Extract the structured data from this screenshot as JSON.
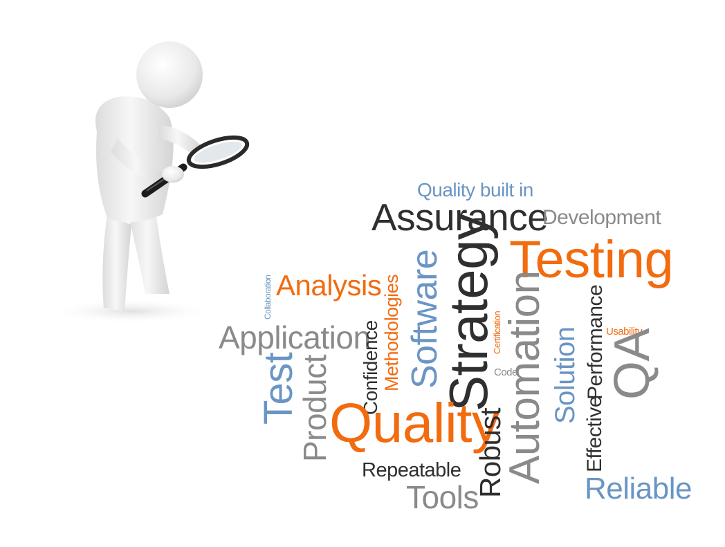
{
  "colors": {
    "orange": "#f26b0f",
    "blue": "#6a95c4",
    "dark": "#2f2f2f",
    "gray": "#8a8a8a"
  },
  "illustration": {
    "subject": "person-with-magnifying-glass-icon"
  },
  "word_cloud": {
    "words": [
      {
        "text": "Quality built in",
        "color": "blue"
      },
      {
        "text": "Assurance",
        "color": "dark"
      },
      {
        "text": "Development",
        "color": "gray"
      },
      {
        "text": "Testing",
        "color": "orange"
      },
      {
        "text": "Collaboration",
        "color": "blue"
      },
      {
        "text": "Analysis",
        "color": "orange"
      },
      {
        "text": "Methodologies",
        "color": "orange"
      },
      {
        "text": "Software",
        "color": "blue"
      },
      {
        "text": "Strategy",
        "color": "dark"
      },
      {
        "text": "Certification",
        "color": "orange"
      },
      {
        "text": "Automation",
        "color": "gray"
      },
      {
        "text": "Performance",
        "color": "dark"
      },
      {
        "text": "Usability",
        "color": "orange"
      },
      {
        "text": "Application",
        "color": "gray"
      },
      {
        "text": "Confidence",
        "color": "dark"
      },
      {
        "text": "Code",
        "color": "gray"
      },
      {
        "text": "Solution",
        "color": "blue"
      },
      {
        "text": "QA",
        "color": "gray"
      },
      {
        "text": "Test",
        "color": "blue"
      },
      {
        "text": "Product",
        "color": "gray"
      },
      {
        "text": "Quality",
        "color": "orange"
      },
      {
        "text": "Effective",
        "color": "dark"
      },
      {
        "text": "Robust",
        "color": "dark"
      },
      {
        "text": "Repeatable",
        "color": "dark"
      },
      {
        "text": "Tools",
        "color": "gray"
      },
      {
        "text": "Reliable",
        "color": "blue"
      }
    ]
  }
}
